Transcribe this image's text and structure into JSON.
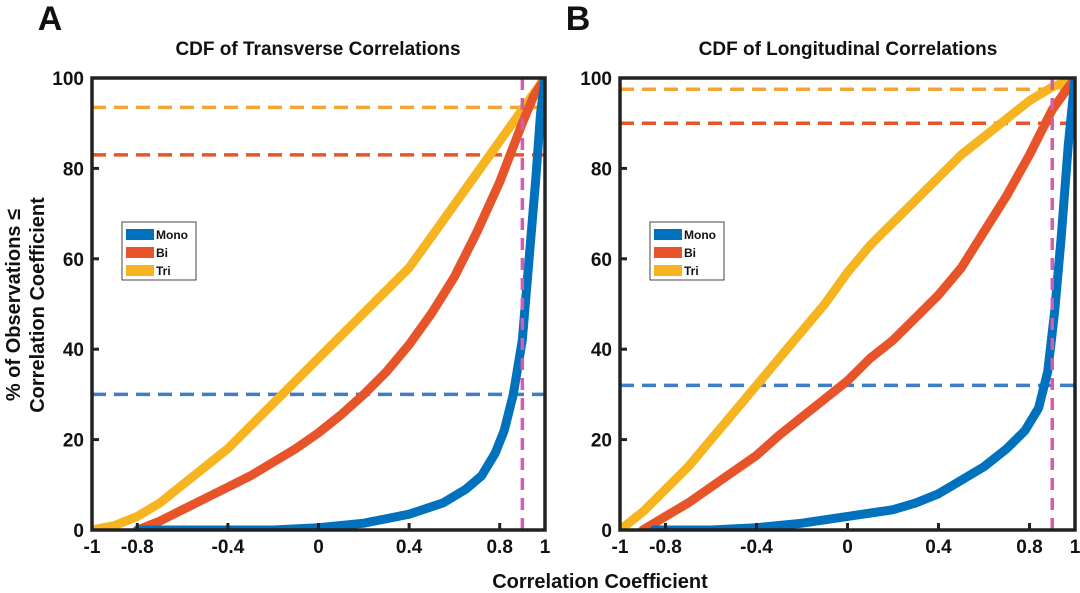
{
  "figure": {
    "xlabel": "Correlation Coefficient",
    "ylabel_line1": "% of Observations ≤",
    "ylabel_line2": "Correlation Coefficient"
  },
  "colors": {
    "mono": "#0072BD",
    "bi": "#E8542A",
    "tri": "#F6B520",
    "mono_ref": "#3F7EC2",
    "bi_ref": "#E8542A",
    "tri_ref": "#F2A434",
    "threshold": "#D45BB0",
    "axis": "#222222"
  },
  "chart_data": [
    {
      "panel": "A",
      "type": "line",
      "title": "CDF of Transverse Correlations",
      "xlabel": "Correlation Coefficient",
      "ylabel": "% of Observations ≤ Correlation Coefficient",
      "xlim": [
        -1,
        1
      ],
      "ylim": [
        0,
        100
      ],
      "xticks": [
        -1,
        -0.8,
        -0.4,
        0,
        0.4,
        0.8,
        1
      ],
      "xtick_labels": [
        "-1",
        "-0.8",
        "-0.4",
        "0",
        "0.4",
        "0.8",
        "1"
      ],
      "yticks": [
        0,
        20,
        40,
        60,
        80,
        100
      ],
      "ytick_labels": [
        "0",
        "20",
        "40",
        "60",
        "80",
        "100"
      ],
      "legend": {
        "position": "center-left",
        "entries": [
          "Mono",
          "Bi",
          "Tri"
        ]
      },
      "series": [
        {
          "name": "Mono",
          "x": [
            -0.8,
            -0.6,
            -0.4,
            -0.2,
            0,
            0.2,
            0.4,
            0.55,
            0.65,
            0.72,
            0.78,
            0.82,
            0.86,
            0.9,
            0.93,
            0.96,
            0.98,
            1.0
          ],
          "y": [
            0,
            0,
            0,
            0,
            0.5,
            1.5,
            3.5,
            6,
            9,
            12,
            17,
            22,
            30,
            42,
            60,
            78,
            92,
            100
          ]
        },
        {
          "name": "Bi",
          "x": [
            -0.8,
            -0.7,
            -0.6,
            -0.5,
            -0.4,
            -0.3,
            -0.2,
            -0.1,
            0,
            0.1,
            0.2,
            0.3,
            0.4,
            0.5,
            0.6,
            0.7,
            0.8,
            0.9,
            0.95,
            1.0
          ],
          "y": [
            0,
            2,
            4.5,
            7,
            9.5,
            12,
            15,
            18,
            21.5,
            25.5,
            30,
            35,
            41,
            48,
            56,
            66,
            77,
            90,
            96,
            100
          ]
        },
        {
          "name": "Tri",
          "x": [
            -1,
            -0.9,
            -0.8,
            -0.7,
            -0.6,
            -0.5,
            -0.4,
            -0.3,
            -0.2,
            -0.1,
            0,
            0.1,
            0.2,
            0.3,
            0.4,
            0.5,
            0.6,
            0.7,
            0.8,
            0.9,
            1.0
          ],
          "y": [
            0,
            1,
            3,
            6,
            10,
            14,
            18,
            23,
            28,
            33,
            38,
            43,
            48,
            53,
            58,
            65,
            72,
            79,
            86,
            93,
            100
          ]
        }
      ],
      "reference_lines": [
        {
          "series": "Mono",
          "y": 30
        },
        {
          "series": "Bi",
          "y": 83
        },
        {
          "series": "Tri",
          "y": 93.5
        }
      ],
      "threshold_x": 0.9
    },
    {
      "panel": "B",
      "type": "line",
      "title": "CDF of Longitudinal Correlations",
      "xlabel": "Correlation Coefficient",
      "ylabel": "% of Observations ≤ Correlation Coefficient",
      "xlim": [
        -1,
        1
      ],
      "ylim": [
        0,
        100
      ],
      "xticks": [
        -1,
        -0.8,
        -0.4,
        0,
        0.4,
        0.8,
        1
      ],
      "xtick_labels": [
        "-1",
        "-0.8",
        "-0.4",
        "0",
        "0.4",
        "0.8",
        "1"
      ],
      "yticks": [
        0,
        20,
        40,
        60,
        80,
        100
      ],
      "ytick_labels": [
        "0",
        "20",
        "40",
        "60",
        "80",
        "100"
      ],
      "legend": {
        "position": "center-left",
        "entries": [
          "Mono",
          "Bi",
          "Tri"
        ]
      },
      "series": [
        {
          "name": "Mono",
          "x": [
            -0.85,
            -0.6,
            -0.4,
            -0.2,
            0,
            0.2,
            0.3,
            0.4,
            0.5,
            0.6,
            0.7,
            0.78,
            0.84,
            0.88,
            0.91,
            0.94,
            0.97,
            1.0
          ],
          "y": [
            0,
            0,
            0.5,
            1.5,
            3,
            4.5,
            6,
            8,
            11,
            14,
            18,
            22,
            27,
            35,
            48,
            65,
            85,
            100
          ]
        },
        {
          "name": "Bi",
          "x": [
            -0.9,
            -0.8,
            -0.7,
            -0.6,
            -0.5,
            -0.4,
            -0.3,
            -0.2,
            -0.1,
            0,
            0.1,
            0.2,
            0.3,
            0.4,
            0.5,
            0.6,
            0.7,
            0.8,
            0.9,
            1.0
          ],
          "y": [
            0,
            3,
            6,
            9.5,
            13,
            16.5,
            21,
            25,
            29,
            33,
            38,
            42,
            47,
            52,
            58,
            66,
            74,
            83,
            93,
            100
          ]
        },
        {
          "name": "Tri",
          "x": [
            -1,
            -0.9,
            -0.8,
            -0.7,
            -0.6,
            -0.5,
            -0.4,
            -0.3,
            -0.2,
            -0.1,
            0,
            0.1,
            0.2,
            0.3,
            0.4,
            0.5,
            0.6,
            0.7,
            0.8,
            0.9,
            1.0
          ],
          "y": [
            0,
            4,
            9,
            14,
            20,
            26,
            32,
            38,
            44,
            50,
            57,
            63,
            68,
            73,
            78,
            83,
            87,
            91,
            95,
            98,
            100
          ]
        }
      ],
      "reference_lines": [
        {
          "series": "Mono",
          "y": 32
        },
        {
          "series": "Bi",
          "y": 90
        },
        {
          "series": "Tri",
          "y": 97.5
        }
      ],
      "threshold_x": 0.9
    }
  ]
}
